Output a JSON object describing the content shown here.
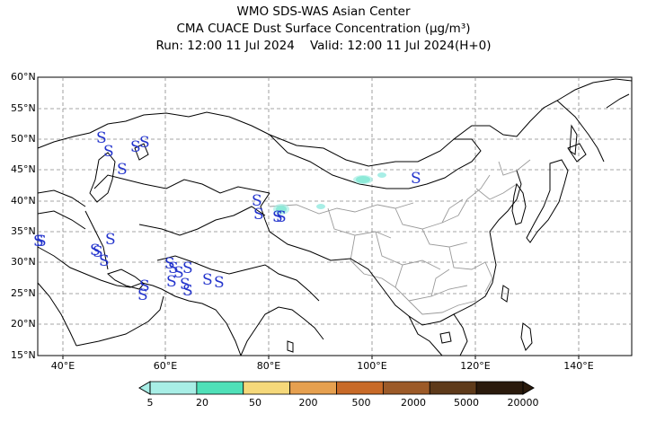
{
  "title": {
    "line1": "WMO SDS-WAS Asian Center",
    "line2": "CMA CUACE Dust Surface Concentration (μg/m³)",
    "line3_run": "Run: 12:00 11 Jul 2024",
    "line3_valid": "Valid: 12:00 11 Jul 2024(H+0)"
  },
  "map": {
    "lat_labels": [
      "60°N",
      "55°N",
      "50°N",
      "45°N",
      "40°N",
      "35°N",
      "30°N",
      "25°N",
      "20°N",
      "15°N"
    ],
    "lon_labels": [
      "40°E",
      "60°E",
      "80°E",
      "100°E",
      "120°E",
      "140°E"
    ],
    "extent": {
      "lon_min": 35,
      "lon_max": 150,
      "lat_min": 15,
      "lat_max": 60
    },
    "dust_marker_symbol": "S",
    "colors": {
      "coast": "#000000",
      "province": "#9a9a9a",
      "grid": "#888888",
      "dust_symbol": "#2233cc"
    }
  },
  "colorbar": {
    "labels": [
      "5",
      "20",
      "50",
      "200",
      "500",
      "2000",
      "5000",
      "20000"
    ],
    "colors": [
      "#a8eee6",
      "#4fe0b8",
      "#f5d87a",
      "#e6a04f",
      "#c86a28",
      "#9c5a28",
      "#5e3a1a",
      "#2a1a0c"
    ]
  }
}
